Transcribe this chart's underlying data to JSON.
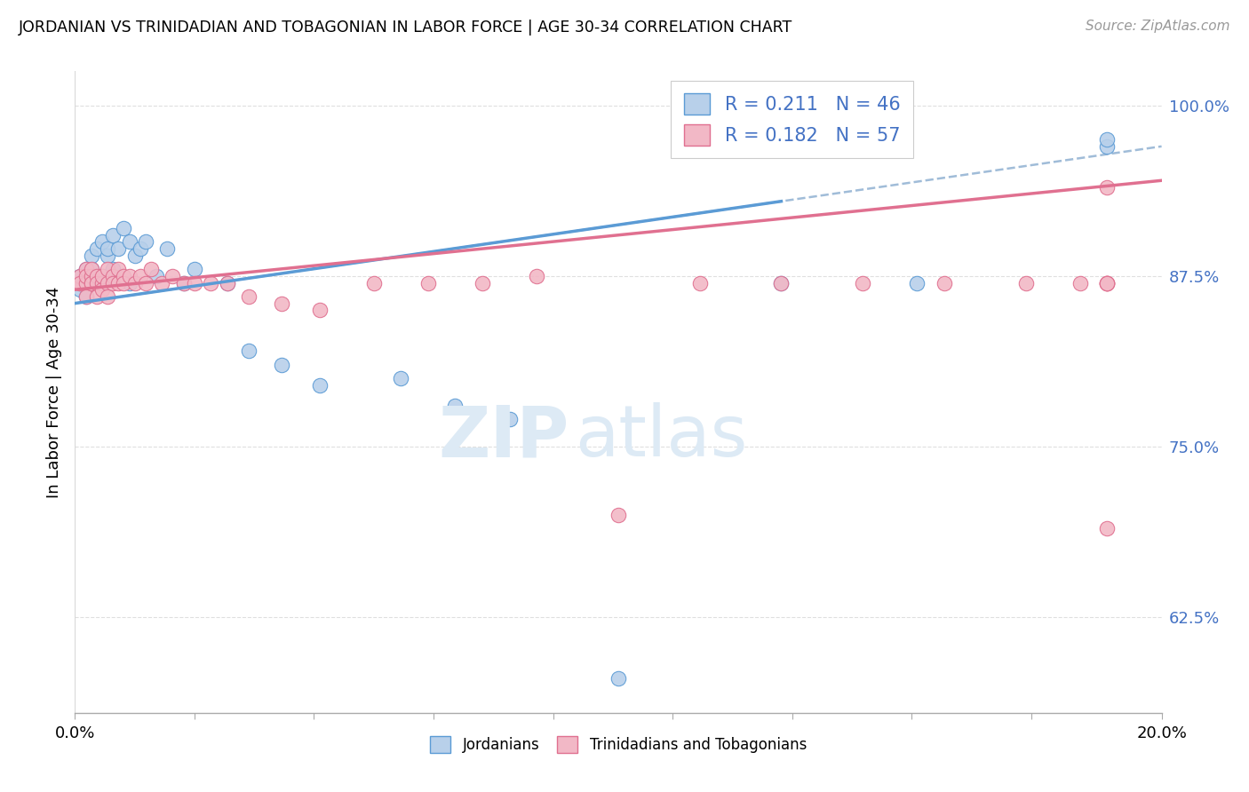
{
  "title": "JORDANIAN VS TRINIDADIAN AND TOBAGONIAN IN LABOR FORCE | AGE 30-34 CORRELATION CHART",
  "source": "Source: ZipAtlas.com",
  "ylabel_label": "In Labor Force | Age 30-34",
  "x_min": 0.0,
  "x_max": 0.2,
  "y_min": 0.555,
  "y_max": 1.025,
  "x_ticks": [
    0.0,
    0.022,
    0.044,
    0.066,
    0.088,
    0.11,
    0.132,
    0.154,
    0.176,
    0.2
  ],
  "y_ticks": [
    0.625,
    0.75,
    0.875,
    1.0
  ],
  "y_tick_labels": [
    "62.5%",
    "75.0%",
    "87.5%",
    "100.0%"
  ],
  "jordanian_R": 0.211,
  "jordanian_N": 46,
  "trinidadian_R": 0.182,
  "trinidadian_N": 57,
  "blue_fill": "#b8d0ea",
  "blue_edge": "#5b9bd5",
  "blue_line": "#5b9bd5",
  "blue_dash": "#a0bcd8",
  "pink_fill": "#f2b8c6",
  "pink_edge": "#e07090",
  "pink_line": "#e07090",
  "legend_color": "#4472c4",
  "bg": "#ffffff",
  "grid_color": "#d8d8d8",
  "jordanian_x": [
    0.001,
    0.001,
    0.001,
    0.001,
    0.002,
    0.002,
    0.002,
    0.002,
    0.002,
    0.003,
    0.003,
    0.003,
    0.003,
    0.004,
    0.004,
    0.004,
    0.005,
    0.005,
    0.006,
    0.006,
    0.006,
    0.007,
    0.007,
    0.008,
    0.009,
    0.01,
    0.01,
    0.011,
    0.012,
    0.013,
    0.015,
    0.017,
    0.02,
    0.022,
    0.028,
    0.032,
    0.038,
    0.045,
    0.06,
    0.07,
    0.08,
    0.1,
    0.13,
    0.155,
    0.19,
    0.19
  ],
  "jordanian_y": [
    0.87,
    0.875,
    0.87,
    0.865,
    0.87,
    0.875,
    0.88,
    0.87,
    0.86,
    0.87,
    0.88,
    0.87,
    0.89,
    0.875,
    0.87,
    0.895,
    0.875,
    0.9,
    0.89,
    0.895,
    0.87,
    0.905,
    0.88,
    0.895,
    0.91,
    0.9,
    0.87,
    0.89,
    0.895,
    0.9,
    0.875,
    0.895,
    0.87,
    0.88,
    0.87,
    0.82,
    0.81,
    0.795,
    0.8,
    0.78,
    0.77,
    0.58,
    0.87,
    0.87,
    0.97,
    0.975
  ],
  "trinidadian_x": [
    0.001,
    0.001,
    0.001,
    0.002,
    0.002,
    0.002,
    0.002,
    0.003,
    0.003,
    0.003,
    0.003,
    0.004,
    0.004,
    0.004,
    0.005,
    0.005,
    0.005,
    0.006,
    0.006,
    0.006,
    0.007,
    0.007,
    0.008,
    0.008,
    0.009,
    0.009,
    0.01,
    0.011,
    0.012,
    0.013,
    0.014,
    0.016,
    0.018,
    0.02,
    0.022,
    0.025,
    0.028,
    0.032,
    0.038,
    0.045,
    0.055,
    0.065,
    0.075,
    0.085,
    0.1,
    0.115,
    0.13,
    0.145,
    0.16,
    0.175,
    0.185,
    0.19,
    0.19,
    0.19,
    0.19,
    0.19,
    0.19
  ],
  "trinidadian_y": [
    0.87,
    0.875,
    0.87,
    0.87,
    0.88,
    0.875,
    0.86,
    0.87,
    0.875,
    0.87,
    0.88,
    0.875,
    0.87,
    0.86,
    0.87,
    0.865,
    0.875,
    0.88,
    0.87,
    0.86,
    0.875,
    0.87,
    0.88,
    0.87,
    0.875,
    0.87,
    0.875,
    0.87,
    0.875,
    0.87,
    0.88,
    0.87,
    0.875,
    0.87,
    0.87,
    0.87,
    0.87,
    0.86,
    0.855,
    0.85,
    0.87,
    0.87,
    0.87,
    0.875,
    0.7,
    0.87,
    0.87,
    0.87,
    0.87,
    0.87,
    0.87,
    0.87,
    0.87,
    0.87,
    0.87,
    0.69,
    0.94
  ]
}
